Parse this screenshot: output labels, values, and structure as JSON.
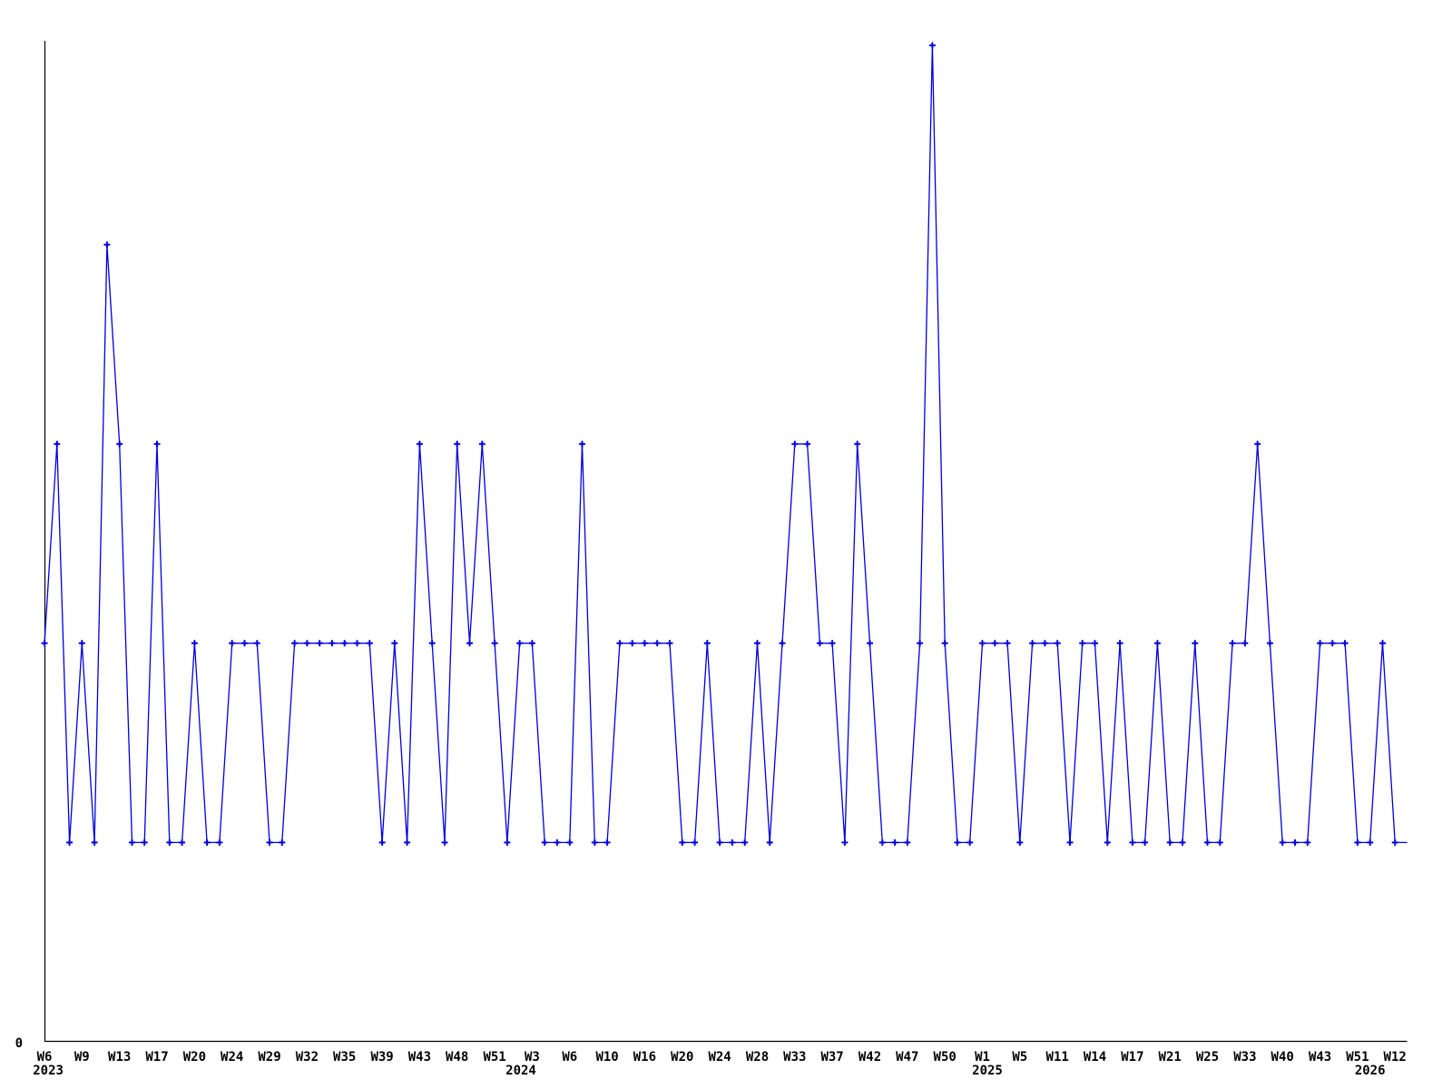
{
  "chart_data": {
    "type": "line",
    "title": "",
    "xlabel": "",
    "ylabel": "",
    "grid": false,
    "legend": "none",
    "line_color": "#0000dd",
    "axis_color": "#000000",
    "marker": "plus",
    "ylim": [
      0,
      5.02
    ],
    "y_zero_label": "0",
    "values": [
      2,
      3,
      1,
      2,
      1,
      4,
      3,
      1,
      1,
      3,
      1,
      1,
      2,
      1,
      1,
      2,
      2,
      2,
      1,
      1,
      2,
      2,
      2,
      2,
      2,
      2,
      2,
      1,
      2,
      1,
      3,
      2,
      1,
      3,
      2,
      3,
      2,
      1,
      2,
      2,
      1,
      1,
      1,
      3,
      1,
      1,
      2,
      2,
      2,
      2,
      2,
      1,
      1,
      2,
      1,
      1,
      1,
      2,
      1,
      2,
      3,
      3,
      2,
      2,
      1,
      3,
      2,
      1,
      1,
      1,
      2,
      5,
      2,
      1,
      1,
      2,
      2,
      2,
      1,
      2,
      2,
      2,
      1,
      2,
      2,
      1,
      2,
      1,
      1,
      2,
      1,
      1,
      2,
      1,
      1,
      2,
      2,
      3,
      2,
      1,
      1,
      1,
      2,
      2,
      2,
      1,
      1,
      2,
      1
    ],
    "trailing_flat_segment_to_right_edge": true,
    "x_tick_labels": [
      {
        "i": 0,
        "label": "W6"
      },
      {
        "i": 3,
        "label": "W9"
      },
      {
        "i": 6,
        "label": "W13"
      },
      {
        "i": 9,
        "label": "W17"
      },
      {
        "i": 12,
        "label": "W20"
      },
      {
        "i": 15,
        "label": "W24"
      },
      {
        "i": 18,
        "label": "W29"
      },
      {
        "i": 21,
        "label": "W32"
      },
      {
        "i": 24,
        "label": "W35"
      },
      {
        "i": 27,
        "label": "W39"
      },
      {
        "i": 30,
        "label": "W43"
      },
      {
        "i": 33,
        "label": "W48"
      },
      {
        "i": 36,
        "label": "W51"
      },
      {
        "i": 39,
        "label": "W3"
      },
      {
        "i": 42,
        "label": "W6"
      },
      {
        "i": 45,
        "label": "W10"
      },
      {
        "i": 48,
        "label": "W16"
      },
      {
        "i": 51,
        "label": "W20"
      },
      {
        "i": 54,
        "label": "W24"
      },
      {
        "i": 57,
        "label": "W28"
      },
      {
        "i": 60,
        "label": "W33"
      },
      {
        "i": 63,
        "label": "W37"
      },
      {
        "i": 66,
        "label": "W42"
      },
      {
        "i": 69,
        "label": "W47"
      },
      {
        "i": 72,
        "label": "W50"
      },
      {
        "i": 75,
        "label": "W1"
      },
      {
        "i": 78,
        "label": "W5"
      },
      {
        "i": 81,
        "label": "W11"
      },
      {
        "i": 84,
        "label": "W14"
      },
      {
        "i": 87,
        "label": "W17"
      },
      {
        "i": 90,
        "label": "W21"
      },
      {
        "i": 93,
        "label": "W25"
      },
      {
        "i": 96,
        "label": "W33"
      },
      {
        "i": 99,
        "label": "W40"
      },
      {
        "i": 102,
        "label": "W43"
      },
      {
        "i": 105,
        "label": "W51"
      },
      {
        "i": 108,
        "label": "W12"
      }
    ],
    "year_labels": [
      {
        "i": 0.3,
        "label": "2023"
      },
      {
        "i": 38.1,
        "label": "2024"
      },
      {
        "i": 75.4,
        "label": "2025"
      },
      {
        "i": 106.0,
        "label": "2026"
      }
    ]
  }
}
